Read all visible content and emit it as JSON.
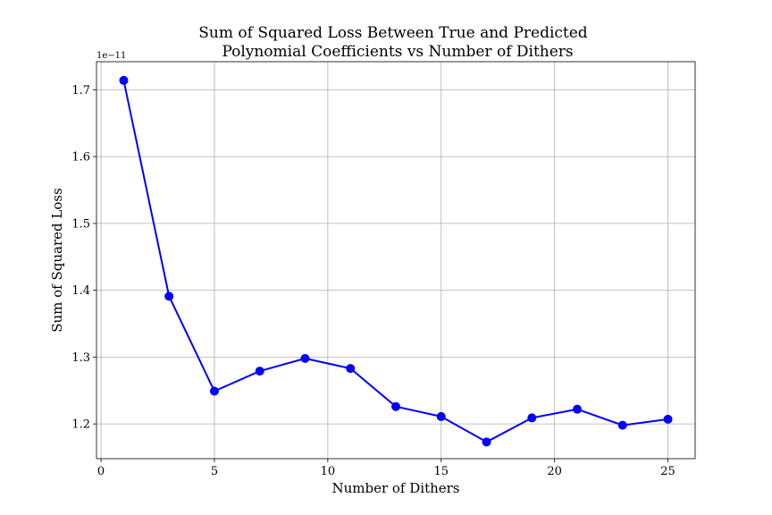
{
  "chart_data": {
    "type": "line",
    "title_line1": "Sum of Squared Loss Between True and Predicted",
    "title_line2": "Polynomial Coefficients vs Number of Dithers",
    "xlabel": "Number of Dithers",
    "ylabel": "Sum of Squared Loss",
    "y_offset_text": "1e−11",
    "xlim": [
      -0.2,
      26.2
    ],
    "ylim": [
      1.148,
      1.742
    ],
    "x_ticks": [
      0,
      5,
      10,
      15,
      20,
      25
    ],
    "x_tick_labels": [
      "0",
      "5",
      "10",
      "15",
      "20",
      "25"
    ],
    "y_ticks": [
      1.2,
      1.3,
      1.4,
      1.5,
      1.6,
      1.7
    ],
    "y_tick_labels": [
      "1.2",
      "1.3",
      "1.4",
      "1.5",
      "1.6",
      "1.7"
    ],
    "grid": true,
    "series": [
      {
        "color": "#0000ff",
        "marker": "circle",
        "x": [
          1,
          3,
          5,
          7,
          9,
          11,
          13,
          15,
          17,
          19,
          21,
          23,
          25
        ],
        "y": [
          1.714,
          1.391,
          1.249,
          1.279,
          1.298,
          1.283,
          1.226,
          1.211,
          1.173,
          1.209,
          1.222,
          1.198,
          1.207
        ]
      }
    ]
  }
}
